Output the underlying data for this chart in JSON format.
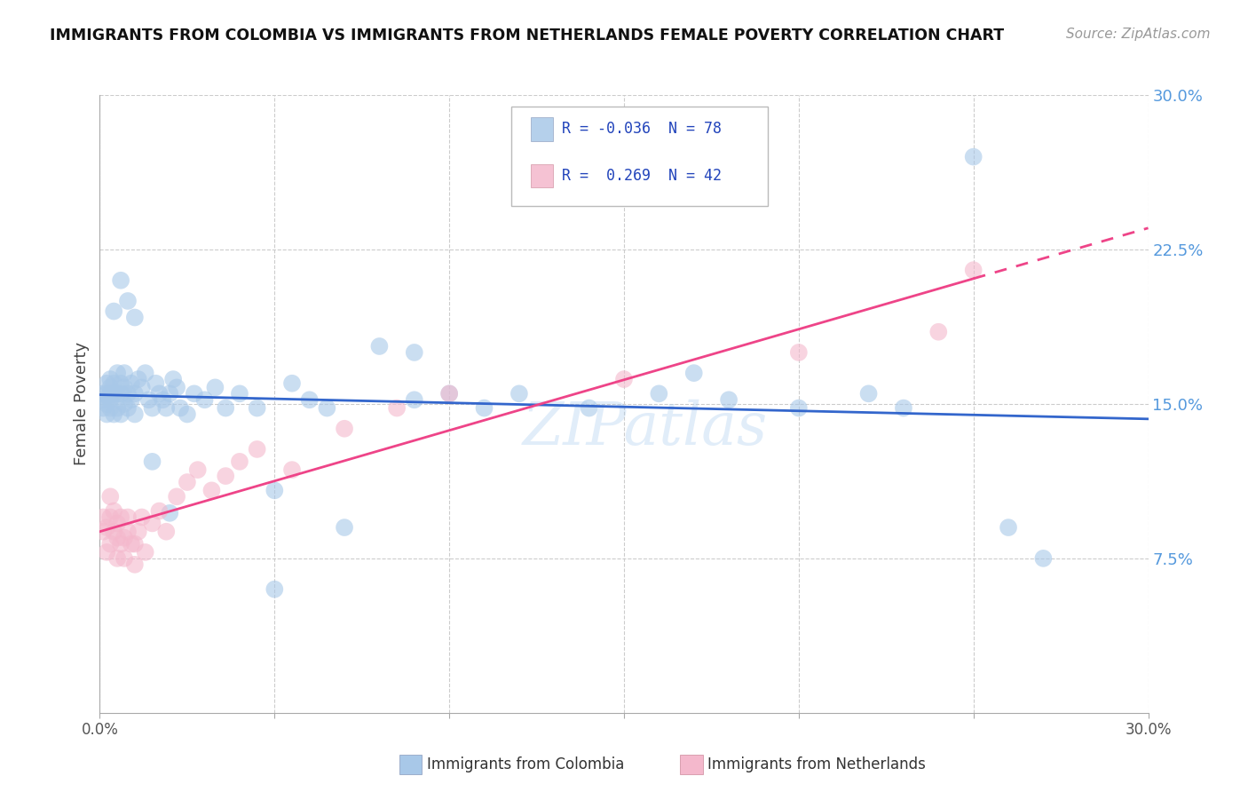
{
  "title": "IMMIGRANTS FROM COLOMBIA VS IMMIGRANTS FROM NETHERLANDS FEMALE POVERTY CORRELATION CHART",
  "source": "Source: ZipAtlas.com",
  "ylabel": "Female Poverty",
  "xlim": [
    0.0,
    0.3
  ],
  "ylim": [
    0.0,
    0.3
  ],
  "yticks_right": [
    0.075,
    0.15,
    0.225,
    0.3
  ],
  "ytick_labels_right": [
    "7.5%",
    "15.0%",
    "22.5%",
    "30.0%"
  ],
  "colombia_color": "#a8c8e8",
  "netherlands_color": "#f4b8cc",
  "colombia_line_color": "#3366cc",
  "netherlands_line_color": "#ee4488",
  "colombia_R": "-0.036",
  "colombia_N": "78",
  "netherlands_R": "0.269",
  "netherlands_N": "42",
  "legend_label_colombia": "Immigrants from Colombia",
  "legend_label_netherlands": "Immigrants from Netherlands",
  "watermark": "ZIPatlas",
  "background_color": "#ffffff",
  "right_tick_color": "#5599dd",
  "colombia_x": [
    0.001,
    0.001,
    0.001,
    0.002,
    0.002,
    0.002,
    0.002,
    0.003,
    0.003,
    0.003,
    0.003,
    0.003,
    0.004,
    0.004,
    0.004,
    0.005,
    0.005,
    0.005,
    0.006,
    0.006,
    0.006,
    0.007,
    0.007,
    0.007,
    0.008,
    0.008,
    0.009,
    0.009,
    0.01,
    0.01,
    0.011,
    0.012,
    0.013,
    0.014,
    0.015,
    0.016,
    0.017,
    0.018,
    0.019,
    0.02,
    0.021,
    0.022,
    0.023,
    0.025,
    0.027,
    0.03,
    0.033,
    0.036,
    0.04,
    0.045,
    0.05,
    0.055,
    0.06,
    0.065,
    0.07,
    0.08,
    0.09,
    0.1,
    0.11,
    0.12,
    0.14,
    0.16,
    0.17,
    0.18,
    0.2,
    0.22,
    0.23,
    0.25,
    0.26,
    0.27,
    0.004,
    0.006,
    0.008,
    0.01,
    0.015,
    0.02,
    0.05,
    0.09
  ],
  "colombia_y": [
    0.148,
    0.152,
    0.155,
    0.145,
    0.155,
    0.16,
    0.15,
    0.148,
    0.152,
    0.155,
    0.158,
    0.162,
    0.145,
    0.155,
    0.16,
    0.148,
    0.155,
    0.165,
    0.145,
    0.155,
    0.16,
    0.15,
    0.158,
    0.165,
    0.148,
    0.155,
    0.152,
    0.16,
    0.145,
    0.155,
    0.162,
    0.158,
    0.165,
    0.152,
    0.148,
    0.16,
    0.155,
    0.152,
    0.148,
    0.155,
    0.162,
    0.158,
    0.148,
    0.145,
    0.155,
    0.152,
    0.158,
    0.148,
    0.155,
    0.148,
    0.108,
    0.16,
    0.152,
    0.148,
    0.09,
    0.178,
    0.152,
    0.155,
    0.148,
    0.155,
    0.148,
    0.155,
    0.165,
    0.152,
    0.148,
    0.155,
    0.148,
    0.27,
    0.09,
    0.075,
    0.195,
    0.21,
    0.2,
    0.192,
    0.122,
    0.097,
    0.06,
    0.175
  ],
  "netherlands_x": [
    0.001,
    0.001,
    0.002,
    0.002,
    0.003,
    0.003,
    0.003,
    0.004,
    0.004,
    0.005,
    0.005,
    0.005,
    0.006,
    0.006,
    0.007,
    0.007,
    0.008,
    0.008,
    0.009,
    0.01,
    0.01,
    0.011,
    0.012,
    0.013,
    0.015,
    0.017,
    0.019,
    0.022,
    0.025,
    0.028,
    0.032,
    0.036,
    0.04,
    0.045,
    0.055,
    0.07,
    0.085,
    0.1,
    0.15,
    0.2,
    0.24,
    0.25
  ],
  "netherlands_y": [
    0.088,
    0.095,
    0.078,
    0.09,
    0.082,
    0.095,
    0.105,
    0.088,
    0.098,
    0.075,
    0.085,
    0.092,
    0.082,
    0.095,
    0.075,
    0.085,
    0.088,
    0.095,
    0.082,
    0.072,
    0.082,
    0.088,
    0.095,
    0.078,
    0.092,
    0.098,
    0.088,
    0.105,
    0.112,
    0.118,
    0.108,
    0.115,
    0.122,
    0.128,
    0.118,
    0.138,
    0.148,
    0.155,
    0.162,
    0.175,
    0.185,
    0.215
  ]
}
